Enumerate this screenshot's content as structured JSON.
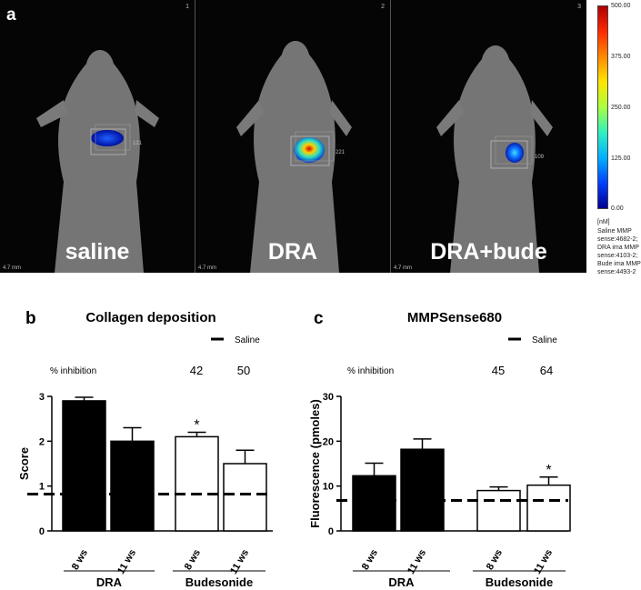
{
  "panel_a": {
    "letter": "a",
    "panels": [
      {
        "number": "1",
        "label": "saline",
        "roi_value": "121",
        "scale": "4.7 mm"
      },
      {
        "number": "2",
        "label": "DRA",
        "roi_value": "221",
        "scale": "4.7 mm"
      },
      {
        "number": "3",
        "label": "DRA+bude",
        "roi_value": "109",
        "scale": "4.7 mm"
      }
    ],
    "colorbar": {
      "ticks": [
        "500.00",
        "375.00",
        "250.00",
        "125.00",
        "0.00"
      ],
      "unit": "[nM]",
      "notes": [
        "Saline MMP",
        "sense:4682-2;",
        "DRA ima MMP",
        "sense:4103-2;",
        "Bude ima MMP",
        "sense:4493-2"
      ]
    }
  },
  "chart_data": [
    {
      "type": "bar",
      "letter": "b",
      "title": "Collagen deposition",
      "legend": "Saline",
      "inhibition_label": "% inhibition",
      "inhibition_values": [
        "42",
        "50"
      ],
      "ylabel": "Score",
      "ylim": [
        0,
        3
      ],
      "yticks": [
        "0",
        "1",
        "2",
        "3"
      ],
      "categories": [
        "8 ws",
        "11 ws",
        "8 ws",
        "11 ws"
      ],
      "groups": [
        "DRA",
        "Budesonide"
      ],
      "values": [
        2.9,
        2.0,
        2.1,
        1.5
      ],
      "errors": [
        0.08,
        0.3,
        0.1,
        0.3
      ],
      "fill": [
        "#000000",
        "#000000",
        "#ffffff",
        "#ffffff"
      ],
      "saline_level": 0.82,
      "significance": [
        "",
        "",
        "*",
        ""
      ]
    },
    {
      "type": "bar",
      "letter": "c",
      "title": "MMPSense680",
      "legend": "Saline",
      "inhibition_label": "% inhibition",
      "inhibition_values": [
        "45",
        "64"
      ],
      "ylabel": "Fluorescence (pmoles)",
      "ylim": [
        0,
        30
      ],
      "yticks": [
        "0",
        "10",
        "20",
        "30"
      ],
      "categories": [
        "8 ws",
        "11 ws",
        "8 ws",
        "11 ws"
      ],
      "groups": [
        "DRA",
        "Budesonide"
      ],
      "values": [
        12.3,
        18.2,
        9.0,
        10.2
      ],
      "errors": [
        2.8,
        2.3,
        0.8,
        1.8
      ],
      "fill": [
        "#000000",
        "#000000",
        "#ffffff",
        "#ffffff"
      ],
      "saline_level": 6.8,
      "significance": [
        "",
        "",
        "",
        "*"
      ]
    }
  ]
}
